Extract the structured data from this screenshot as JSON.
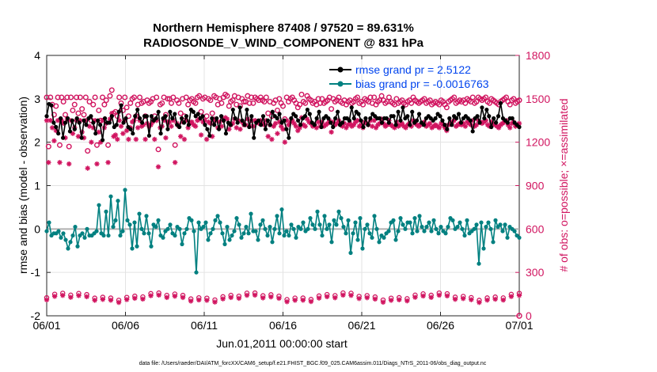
{
  "chart_data": {
    "type": "line",
    "title": [
      "Northern Hemisphere 87408 / 97520 = 89.631%",
      "RADIOSONDE_V_WIND_COMPONENT @ 831 hPa"
    ],
    "xlabel": "Jun.01,2011 00:00:00 start",
    "ylabel_left": "rmse and bias (model - observation)",
    "ylabel_right": "# of obs: o=possible; ×=assimilated",
    "left_ylim": [
      -2,
      4
    ],
    "right_ylim": [
      0,
      1800
    ],
    "xlim": [
      0,
      30
    ],
    "x_ticks": [
      0,
      5,
      10,
      15,
      20,
      25,
      30
    ],
    "x_tick_labels": [
      "06/01",
      "06/06",
      "06/11",
      "06/16",
      "06/21",
      "06/26",
      "07/01"
    ],
    "left_ticks": [
      -2,
      -1,
      0,
      1,
      2,
      3,
      4
    ],
    "right_ticks": [
      0,
      300,
      600,
      900,
      1200,
      1500,
      1800
    ],
    "grid": true,
    "legend_position": "top-right",
    "colors": {
      "rmse": "#000000",
      "bias": "#008080",
      "counts": "#d11560",
      "zero_line": "#b0b0b0",
      "legend_text": "#0044ee"
    },
    "footer": "data file: /Users/raeder/DAI/ATM_forcXX/CAM6_setup/f.e21.FHIST_BGC.f09_025.CAM6assim.011/Diags_NTrS_2011-06/obs_diag_output.nc",
    "series": [
      {
        "name": "rmse grand pr = 2.5122",
        "axis": "left",
        "marker": "dot",
        "values": [
          2.6,
          2.88,
          2.85,
          2.45,
          2.35,
          2.2,
          2.55,
          2.1,
          2.45,
          2.55,
          2.25,
          2.5,
          2.3,
          2.55,
          2.45,
          2.1,
          2.5,
          2.4,
          2.55,
          2.6,
          2.45,
          2.2,
          2.5,
          2.4,
          2.05,
          2.55,
          2.45,
          2.45,
          2.6,
          2.35,
          2.4,
          2.7,
          2.85,
          2.45,
          2.55,
          2.35,
          2.3,
          2.2,
          2.6,
          2.75,
          2.55,
          2.45,
          2.6,
          2.6,
          2.15,
          2.6,
          2.5,
          2.55,
          2.7,
          2.2,
          2.55,
          2.6,
          2.3,
          2.7,
          2.55,
          2.65,
          2.4,
          2.35,
          2.55,
          2.45,
          2.6,
          2.4,
          2.75,
          2.7,
          2.6,
          2.65,
          2.55,
          2.6,
          2.4,
          2.3,
          2.15,
          2.55,
          2.4,
          2.55,
          2.3,
          2.6,
          2.5,
          2.2,
          2.45,
          2.4,
          2.75,
          2.55,
          2.45,
          2.8,
          2.5,
          2.4,
          2.75,
          2.35,
          2.6,
          2.1,
          2.45,
          2.5,
          2.4,
          2.6,
          2.3,
          2.5,
          2.4,
          2.7,
          2.6,
          2.55,
          2.65,
          2.45,
          2.5,
          2.3,
          2.1,
          2.55,
          2.65,
          2.6,
          2.5,
          2.4,
          2.55,
          2.6,
          2.75,
          2.65,
          2.45,
          2.4,
          2.55,
          2.7,
          2.35,
          2.55,
          2.6,
          2.55,
          2.45,
          2.35,
          2.55,
          2.7,
          2.4,
          2.45,
          2.55,
          2.55,
          2.5,
          2.8,
          2.55,
          2.7,
          2.65,
          2.5,
          2.35,
          2.55,
          2.4,
          2.55,
          2.65,
          2.6,
          2.55,
          2.55,
          2.45,
          2.55,
          2.55,
          2.45,
          2.6,
          2.6,
          2.4,
          2.7,
          2.5,
          2.8,
          2.55,
          2.6,
          2.4,
          2.7,
          2.45,
          2.5,
          2.65,
          2.45,
          2.4,
          2.55,
          2.6,
          2.55,
          2.5,
          2.55,
          2.65,
          2.6,
          2.5,
          2.4,
          2.3,
          2.55,
          2.4,
          2.6,
          2.55,
          2.65,
          2.45,
          2.55,
          2.6,
          2.55,
          2.5,
          2.25,
          2.55,
          2.6,
          2.45,
          2.8,
          2.55,
          2.75,
          2.6,
          2.35,
          2.55,
          2.45,
          2.6,
          2.9,
          2.55,
          2.5,
          2.45,
          2.55,
          2.55,
          2.45,
          2.4,
          2.35
        ]
      },
      {
        "name": "bias grand pr = -0.0016763",
        "axis": "left",
        "marker": "dot",
        "values": [
          -0.05,
          0.15,
          -0.15,
          -0.1,
          -0.1,
          -0.05,
          -0.2,
          -0.1,
          -0.25,
          -0.45,
          -0.3,
          -0.15,
          0.05,
          -0.4,
          -0.15,
          -0.1,
          -0.2,
          0.0,
          -0.15,
          -0.15,
          -0.1,
          -0.05,
          0.55,
          -0.1,
          -0.15,
          0.4,
          -0.15,
          0.75,
          0.05,
          0.2,
          0.65,
          -0.15,
          -0.05,
          0.9,
          0.2,
          0.1,
          -0.45,
          0.15,
          -0.4,
          0.35,
          0.0,
          -0.1,
          0.3,
          -0.1,
          -0.4,
          0.1,
          0.05,
          0.2,
          -0.15,
          -0.2,
          -0.05,
          0.0,
          0.1,
          -0.1,
          -0.15,
          0.05,
          0.0,
          -0.35,
          -0.1,
          0.0,
          0.25,
          0.2,
          -0.05,
          -1.0,
          0.15,
          0.0,
          0.05,
          0.15,
          -0.25,
          -0.1,
          0.0,
          0.2,
          0.3,
          0.15,
          -0.1,
          -0.35,
          0.05,
          -0.25,
          -0.15,
          -0.05,
          0.25,
          0.1,
          -0.2,
          -0.1,
          0.05,
          -0.1,
          0.35,
          -0.05,
          -0.05,
          -0.25,
          0.1,
          0.2,
          0.0,
          -0.15,
          0.05,
          -0.3,
          0.0,
          0.3,
          -0.1,
          0.45,
          -0.15,
          -0.05,
          -0.15,
          0.1,
          0.0,
          -0.2,
          0.05,
          0.0,
          0.15,
          -0.05,
          0.0,
          0.25,
          0.1,
          0.0,
          0.4,
          0.1,
          -0.15,
          0.3,
          0.0,
          0.1,
          -0.3,
          0.2,
          0.1,
          0.4,
          0.25,
          0.05,
          -0.1,
          0.2,
          -0.55,
          -0.1,
          0.15,
          -0.25,
          0.25,
          -0.45,
          0.0,
          0.1,
          -0.1,
          -0.2,
          0.3,
          0.0,
          -0.3,
          -0.15,
          -0.2,
          -0.1,
          -0.05,
          0.15,
          0.2,
          -0.25,
          -0.05,
          0.25,
          0.1,
          0.0,
          0.15,
          0.15,
          -0.1,
          0.25,
          -0.05,
          0.3,
          0.05,
          -0.05,
          0.05,
          0.15,
          -0.05,
          0.2,
          0.0,
          -0.1,
          0.05,
          -0.05,
          -0.1,
          0.05,
          0.25,
          0.2,
          0.0,
          0.05,
          0.15,
          0.0,
          -0.15,
          0.2,
          -0.1,
          -0.05,
          0.0,
          0.1,
          -0.8,
          0.15,
          -0.45,
          0.05,
          0.15,
          0.0,
          -0.3,
          0.2,
          0.05,
          0.1,
          -0.05,
          0.1,
          -0.2,
          0.05,
          0.0,
          -0.05,
          -0.15,
          -0.2
        ]
      },
      {
        "name": "possible",
        "axis": "right",
        "marker": "circle",
        "values": [
          1510,
          1170,
          1510,
          1460,
          1390,
          1450,
          1510,
          1180,
          1510,
          1480,
          1390,
          1510,
          1170,
          1510,
          1420,
          1460,
          1510,
          1400,
          1510,
          1430,
          1390,
          1510,
          1140,
          1480,
          1350,
          1460,
          1510,
          1180,
          1420,
          1350,
          1510,
          1460,
          1490,
          1180,
          1520,
          1560,
          1400,
          1410,
          1380,
          1510,
          1470,
          1420,
          1510,
          1440,
          1380,
          1470,
          1500,
          1510,
          1380,
          1460,
          1510,
          1470,
          1480,
          1380,
          1490,
          1470,
          1480,
          1500,
          1380,
          1510,
          1150,
          1460,
          1470,
          1510,
          1390,
          1500,
          1500,
          1470,
          1510,
          1180,
          1490,
          1470,
          1400,
          1500,
          1380,
          1510,
          1460,
          1490,
          1500,
          1480,
          1470,
          1510,
          1520,
          1410,
          1500,
          1510,
          1380,
          1500,
          1490,
          1400,
          1520,
          1510,
          1460,
          1500,
          1470,
          1510,
          1530,
          1520,
          1450,
          1480,
          1490,
          1520,
          1460,
          1510,
          1450,
          1500,
          1480,
          1480,
          1520,
          1470,
          1510,
          1470,
          1510,
          1500,
          1490,
          1510,
          1490,
          1480,
          1510,
          1400,
          1480,
          1380,
          1470,
          1490,
          1420,
          1500,
          1470,
          1450,
          1360,
          1510,
          1480,
          1500,
          1510,
          1490,
          1470,
          1440,
          1460,
          1530,
          1480,
          1470,
          1520,
          1500,
          1490,
          1470,
          1480,
          1460,
          1500,
          1470,
          1500,
          1470,
          1480,
          1490,
          1510,
          1430,
          1500,
          1480,
          1490,
          1510,
          1480,
          1470,
          1490,
          1460,
          1480,
          1490,
          1470,
          1480,
          1500,
          1510,
          1470,
          1480,
          1460,
          1500,
          1490,
          1480,
          1510,
          1470,
          1510,
          1460,
          1480,
          1490,
          1520,
          1490,
          1470,
          1480,
          1510,
          1480,
          1470,
          1460,
          1500,
          1470,
          1480,
          1490,
          1470,
          1460,
          1480,
          1490,
          1470,
          1510,
          1490,
          1480,
          1470,
          1480,
          1490,
          1500,
          1470,
          1480,
          1490,
          1460,
          1470,
          1480,
          1470,
          1460,
          1490,
          1480,
          1460,
          1440,
          1480,
          1490,
          1500,
          1510,
          1470,
          1480,
          1490,
          1480,
          1490,
          1470,
          1500,
          1490,
          1480,
          1510,
          1470,
          1480,
          1510,
          1500,
          1490,
          1500,
          1510,
          1480,
          1470,
          1500,
          1490,
          1480,
          1470,
          1460,
          1480,
          1490,
          1500,
          1510,
          1480,
          1460,
          1490,
          1500,
          1470,
          1480,
          1490
        ]
      },
      {
        "name": "assimilated",
        "axis": "right",
        "marker": "asterisk",
        "values": [
          1350,
          1060,
          1350,
          1300,
          1210,
          1280,
          1350,
          1060,
          1350,
          1330,
          1230,
          1360,
          1050,
          1350,
          1260,
          1300,
          1350,
          1240,
          1350,
          1270,
          1230,
          1350,
          1020,
          1310,
          1200,
          1300,
          1350,
          1050,
          1270,
          1200,
          1350,
          1300,
          1330,
          1060,
          1360,
          1400,
          1240,
          1250,
          1220,
          1350,
          1310,
          1260,
          1350,
          1280,
          1220,
          1300,
          1340,
          1350,
          1220,
          1300,
          1350,
          1310,
          1320,
          1220,
          1330,
          1310,
          1320,
          1340,
          1220,
          1350,
          1030,
          1300,
          1310,
          1350,
          1230,
          1340,
          1340,
          1310,
          1350,
          1060,
          1330,
          1310,
          1240,
          1340,
          1220,
          1350,
          1300,
          1330,
          1340,
          1320,
          1310,
          1350,
          1360,
          1250,
          1340,
          1350,
          1220,
          1340,
          1330,
          1240,
          1360,
          1350,
          1300,
          1340,
          1310,
          1350,
          1370,
          1360,
          1290,
          1320,
          1330,
          1360,
          1300,
          1350,
          1290,
          1340,
          1320,
          1320,
          1360,
          1310,
          1350,
          1310,
          1350,
          1340,
          1330,
          1350,
          1330,
          1320,
          1350,
          1240,
          1320,
          1220,
          1310,
          1330,
          1260,
          1340,
          1310,
          1290,
          1200,
          1350,
          1320,
          1340,
          1350,
          1330,
          1310,
          1280,
          1300,
          1370,
          1320,
          1310,
          1360,
          1340,
          1330,
          1310,
          1320,
          1300,
          1340,
          1310,
          1340,
          1310,
          1320,
          1330,
          1350,
          1270,
          1340,
          1320,
          1330,
          1350,
          1320,
          1310,
          1330,
          1300,
          1320,
          1330,
          1310,
          1320,
          1340,
          1350,
          1310,
          1320,
          1300,
          1340,
          1330,
          1320,
          1350,
          1310,
          1350,
          1300,
          1320,
          1330,
          1360,
          1330,
          1310,
          1320,
          1350,
          1320,
          1310,
          1300,
          1340,
          1310,
          1320,
          1330,
          1310,
          1300,
          1320,
          1330,
          1310,
          1350,
          1330,
          1320,
          1310,
          1320,
          1330,
          1340,
          1310,
          1320,
          1330,
          1300,
          1310,
          1320,
          1310,
          1300,
          1330,
          1320,
          1300,
          1280,
          1320,
          1330,
          1340,
          1350,
          1310,
          1320,
          1330,
          1320,
          1330,
          1310,
          1340,
          1330,
          1320,
          1350,
          1310,
          1320,
          1350,
          1340,
          1330,
          1340,
          1350,
          1320,
          1310,
          1340,
          1330,
          1320,
          1310,
          1300,
          1320,
          1330,
          1340,
          1350,
          1320,
          1300,
          1330,
          1340,
          1310,
          1320,
          1330
        ]
      }
    ]
  }
}
